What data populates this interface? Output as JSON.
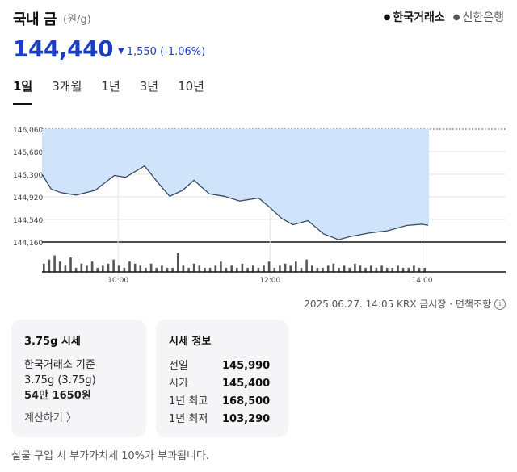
{
  "header": {
    "title": "국내 금",
    "unit": "(원/g)",
    "sources": [
      {
        "label": "한국거래소",
        "active": true
      },
      {
        "label": "신한은행",
        "active": false
      }
    ]
  },
  "price": {
    "value": "144,440",
    "direction_icon": "down-triangle-icon",
    "change": "1,550",
    "change_pct": "(-1.06%)",
    "color": "#1a3fc6"
  },
  "tabs": [
    "1일",
    "3개월",
    "1년",
    "3년",
    "10년"
  ],
  "active_tab": "1일",
  "chart_data": {
    "type": "area",
    "y_ticks": [
      "146,060",
      "145,680",
      "145,300",
      "144,920",
      "144,540",
      "144,160"
    ],
    "x_ticks": [
      "10:00",
      "12:00",
      "14:00"
    ],
    "ylim": [
      144160,
      146060
    ],
    "reference_value": 146060,
    "series": [
      {
        "x_hours": [
          9.0,
          9.12,
          9.25,
          9.45,
          9.7,
          9.95,
          10.1,
          10.35,
          10.55,
          10.68,
          10.85,
          11.0,
          11.2,
          11.4,
          11.6,
          11.85,
          12.0,
          12.15,
          12.3,
          12.5,
          12.7,
          12.9,
          13.05,
          13.3,
          13.55,
          13.8,
          14.0,
          14.08
        ],
        "values": [
          145300,
          145050,
          144990,
          144950,
          145030,
          145280,
          145250,
          145440,
          145120,
          144930,
          145030,
          145200,
          144970,
          144930,
          144850,
          144900,
          144740,
          144560,
          144450,
          144520,
          144300,
          144200,
          144250,
          144310,
          144350,
          144440,
          144460,
          144440
        ]
      }
    ],
    "volume": [
      4,
      6,
      8,
      5,
      3,
      7,
      2,
      4,
      3,
      5,
      2,
      3,
      4,
      6,
      3,
      2,
      5,
      4,
      3,
      2,
      4,
      2,
      3,
      2,
      2,
      9,
      3,
      2,
      4,
      3,
      2,
      2,
      3,
      5,
      2,
      3,
      2,
      4,
      2,
      3,
      2,
      3,
      5,
      2,
      3,
      4,
      3,
      5,
      2,
      6,
      3,
      2,
      2,
      3,
      4,
      2,
      3,
      2,
      4,
      3,
      2,
      3,
      2,
      3,
      2,
      2,
      3,
      2,
      2,
      3,
      2,
      2
    ],
    "fill_color": "#cfe4fb",
    "line_color": "#3a4a63",
    "volume_color": "#555555"
  },
  "meta": {
    "text": "2025.06.27. 14:05 KRX 금시장 · 면책조항",
    "info_icon": "info-icon"
  },
  "card_market": {
    "title": "3.75g 시세",
    "line1": "한국거래소 기준",
    "line2": "3.75g (3.75g)",
    "line3": "54만 1650원",
    "link": "계산하기 〉"
  },
  "card_info": {
    "title": "시세 정보",
    "rows": [
      {
        "k": "전일",
        "v": "145,990"
      },
      {
        "k": "시가",
        "v": "145,400"
      },
      {
        "k": "1년 최고",
        "v": "168,500"
      },
      {
        "k": "1년 최저",
        "v": "103,290"
      }
    ]
  },
  "footnote": "실물 구입 시 부가가치세 10%가 부과됩니다."
}
